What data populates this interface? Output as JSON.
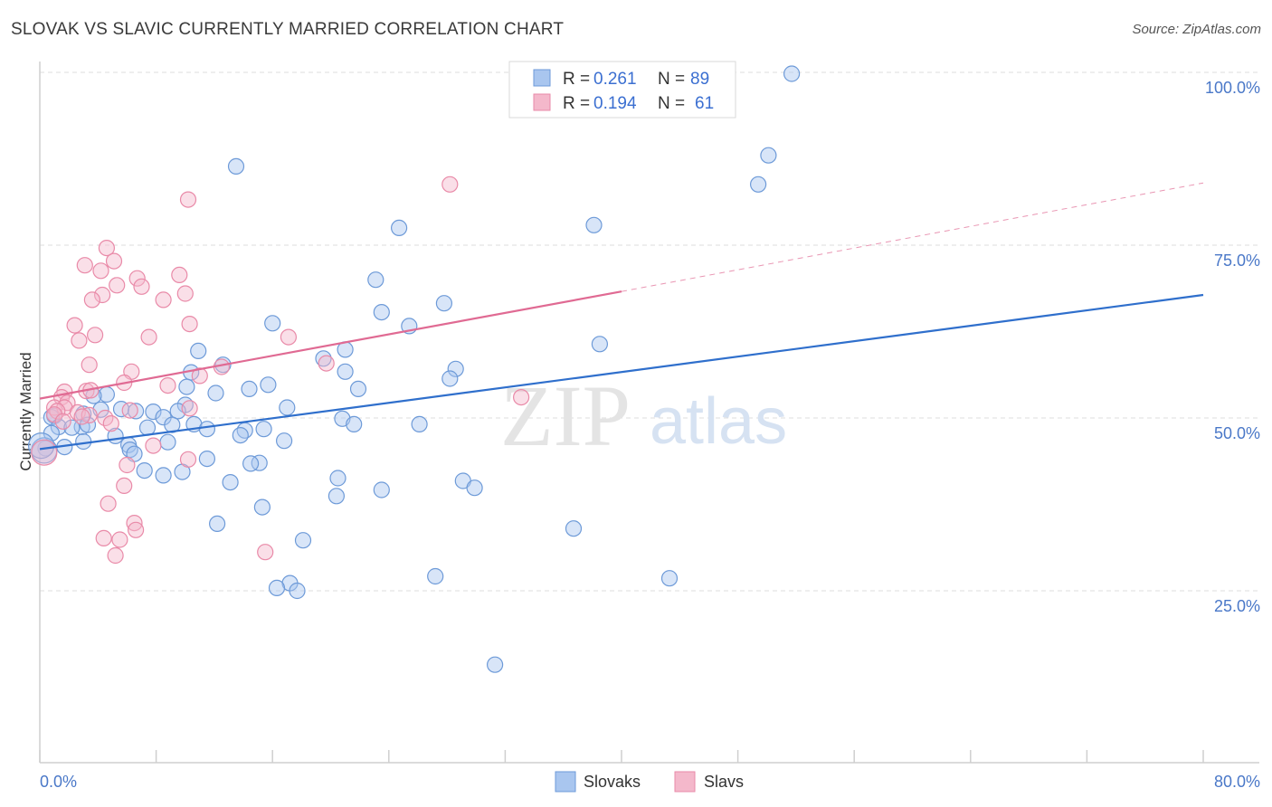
{
  "title": "SLOVAK VS SLAVIC CURRENTLY MARRIED CORRELATION CHART",
  "source": "Source: ZipAtlas.com",
  "watermark": {
    "zip": "ZIP",
    "atlas": "atlas"
  },
  "colors": {
    "blue_fill": "#a9c6ef",
    "blue_stroke": "#6d9ad8",
    "blue_line": "#2f6fcc",
    "pink_fill": "#f4b8cb",
    "pink_stroke": "#e98aa8",
    "pink_line": "#e06a93",
    "grid": "#dedede",
    "axis_label": "#4a78c8"
  },
  "legend": {
    "r_label": "R =",
    "n_label": "N =",
    "rows": [
      {
        "series": "Slovaks",
        "r": "0.261",
        "n": "89"
      },
      {
        "series": "Slavs",
        "r": "0.194",
        "n": "61"
      }
    ]
  },
  "chart_data": {
    "type": "scatter",
    "xlabel": "",
    "ylabel": "Currently Married",
    "xlim": [
      0,
      80
    ],
    "ylim": [
      3,
      105
    ],
    "x_tick_labels": [
      "0.0%",
      "80.0%"
    ],
    "y_tick_labels": [
      "100.0%",
      "75.0%",
      "50.0%",
      "25.0%"
    ],
    "y_ticks": [
      100,
      75,
      50,
      25
    ],
    "grid": true,
    "series": [
      {
        "name": "Slovaks",
        "trend": {
          "x0": 0,
          "y0": 45.5,
          "x1": 80,
          "y1": 67.8,
          "dashed_from": null
        },
        "points": [
          [
            51.7,
            99.8
          ],
          [
            13.5,
            86.4
          ],
          [
            50.1,
            88.0
          ],
          [
            49.4,
            83.8
          ],
          [
            24.7,
            77.5
          ],
          [
            38.1,
            77.9
          ],
          [
            23.1,
            70.0
          ],
          [
            27.8,
            66.6
          ],
          [
            23.5,
            65.3
          ],
          [
            16.0,
            63.7
          ],
          [
            25.4,
            63.3
          ],
          [
            38.5,
            60.7
          ],
          [
            10.9,
            59.7
          ],
          [
            21.0,
            59.9
          ],
          [
            19.5,
            58.6
          ],
          [
            12.6,
            57.7
          ],
          [
            28.6,
            57.1
          ],
          [
            21.0,
            56.7
          ],
          [
            10.4,
            56.6
          ],
          [
            28.2,
            55.7
          ],
          [
            15.7,
            54.8
          ],
          [
            21.9,
            54.2
          ],
          [
            10.1,
            54.5
          ],
          [
            14.4,
            54.2
          ],
          [
            12.1,
            53.6
          ],
          [
            4.6,
            53.4
          ],
          [
            3.7,
            53.2
          ],
          [
            17.0,
            51.5
          ],
          [
            10.0,
            51.9
          ],
          [
            5.6,
            51.3
          ],
          [
            6.6,
            51.0
          ],
          [
            9.5,
            51.0
          ],
          [
            7.8,
            50.9
          ],
          [
            3.0,
            50.6
          ],
          [
            4.2,
            51.2
          ],
          [
            1.0,
            50.3
          ],
          [
            20.8,
            49.9
          ],
          [
            0.8,
            50.1
          ],
          [
            8.5,
            50.1
          ],
          [
            21.6,
            49.1
          ],
          [
            26.1,
            49.1
          ],
          [
            10.6,
            49.1
          ],
          [
            9.1,
            49.0
          ],
          [
            7.4,
            48.6
          ],
          [
            1.3,
            48.7
          ],
          [
            2.9,
            48.7
          ],
          [
            2.2,
            48.6
          ],
          [
            3.3,
            49.0
          ],
          [
            11.5,
            48.4
          ],
          [
            15.4,
            48.4
          ],
          [
            14.1,
            48.2
          ],
          [
            0.8,
            47.8
          ],
          [
            13.8,
            47.5
          ],
          [
            5.2,
            47.4
          ],
          [
            3.0,
            46.6
          ],
          [
            16.8,
            46.7
          ],
          [
            8.8,
            46.5
          ],
          [
            6.1,
            46.1
          ],
          [
            1.7,
            45.8
          ],
          [
            6.2,
            45.4
          ],
          [
            6.5,
            44.8
          ],
          [
            0.4,
            45.6
          ],
          [
            11.5,
            44.1
          ],
          [
            15.1,
            43.5
          ],
          [
            14.5,
            43.4
          ],
          [
            9.8,
            42.2
          ],
          [
            7.2,
            42.4
          ],
          [
            8.5,
            41.7
          ],
          [
            20.5,
            41.3
          ],
          [
            13.1,
            40.7
          ],
          [
            29.1,
            40.9
          ],
          [
            23.5,
            39.6
          ],
          [
            29.9,
            39.9
          ],
          [
            20.4,
            38.7
          ],
          [
            15.3,
            37.1
          ],
          [
            12.2,
            34.7
          ],
          [
            36.7,
            34.0
          ],
          [
            18.1,
            32.3
          ],
          [
            27.2,
            27.1
          ],
          [
            43.3,
            26.8
          ],
          [
            17.2,
            26.1
          ],
          [
            16.3,
            25.4
          ],
          [
            17.7,
            25.0
          ],
          [
            31.3,
            14.3
          ],
          [
            0.3,
            45.3
          ],
          [
            0.1,
            46.0
          ]
        ]
      },
      {
        "name": "Slavs",
        "trend": {
          "x0": 0,
          "y0": 52.8,
          "x1": 40,
          "y1": 68.3,
          "dashed_from": 40,
          "x2": 80,
          "y2": 84.0
        },
        "points": [
          [
            28.2,
            83.8
          ],
          [
            10.2,
            81.6
          ],
          [
            4.6,
            74.6
          ],
          [
            3.1,
            72.1
          ],
          [
            5.1,
            72.7
          ],
          [
            4.2,
            71.3
          ],
          [
            9.6,
            70.7
          ],
          [
            6.7,
            70.2
          ],
          [
            5.3,
            69.2
          ],
          [
            7.0,
            69.0
          ],
          [
            10.0,
            68.0
          ],
          [
            4.3,
            67.8
          ],
          [
            3.6,
            67.1
          ],
          [
            8.5,
            67.1
          ],
          [
            2.4,
            63.4
          ],
          [
            10.3,
            63.6
          ],
          [
            3.8,
            62.0
          ],
          [
            7.5,
            61.7
          ],
          [
            17.1,
            61.7
          ],
          [
            2.7,
            61.2
          ],
          [
            3.4,
            57.7
          ],
          [
            19.7,
            57.9
          ],
          [
            12.5,
            57.4
          ],
          [
            6.3,
            56.7
          ],
          [
            11.0,
            56.1
          ],
          [
            5.8,
            55.1
          ],
          [
            8.8,
            54.7
          ],
          [
            1.7,
            53.8
          ],
          [
            3.2,
            53.9
          ],
          [
            3.5,
            54.0
          ],
          [
            1.5,
            53.0
          ],
          [
            1.9,
            52.2
          ],
          [
            33.1,
            53.0
          ],
          [
            1.0,
            51.5
          ],
          [
            1.7,
            51.5
          ],
          [
            1.2,
            51.0
          ],
          [
            6.2,
            51.1
          ],
          [
            2.6,
            50.8
          ],
          [
            3.4,
            50.4
          ],
          [
            10.3,
            51.4
          ],
          [
            1.0,
            50.5
          ],
          [
            2.9,
            50.2
          ],
          [
            4.5,
            50.0
          ],
          [
            1.6,
            49.5
          ],
          [
            4.9,
            49.2
          ],
          [
            7.8,
            46.0
          ],
          [
            10.2,
            44.0
          ],
          [
            6.0,
            43.2
          ],
          [
            5.8,
            40.2
          ],
          [
            4.7,
            37.6
          ],
          [
            6.5,
            34.8
          ],
          [
            6.6,
            33.8
          ],
          [
            4.4,
            32.6
          ],
          [
            5.5,
            32.4
          ],
          [
            15.5,
            30.6
          ],
          [
            5.2,
            30.1
          ],
          [
            0.3,
            45.0
          ]
        ]
      }
    ]
  },
  "bottom_legend": [
    "Slovaks",
    "Slavs"
  ]
}
